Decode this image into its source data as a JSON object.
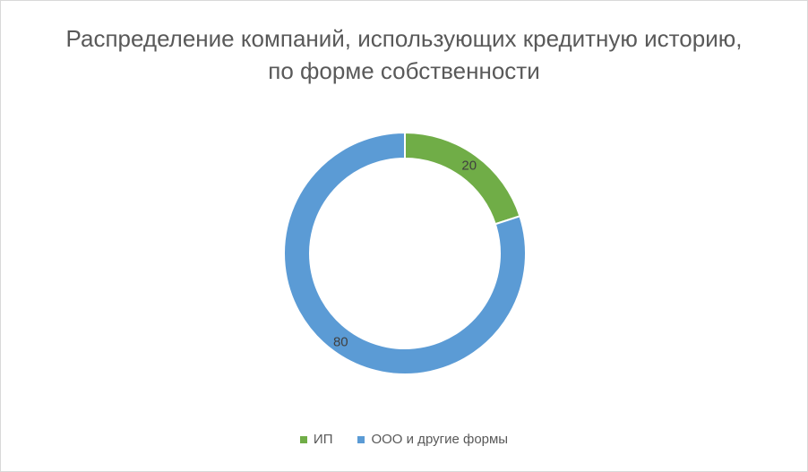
{
  "chart_data": {
    "type": "doughnut",
    "title": "Распределение компаний, использующих кредитную историю, по форме собственности",
    "categories": [
      "ИП",
      "ООО и другие формы"
    ],
    "values": [
      20,
      80
    ],
    "data_labels": [
      "20",
      "80"
    ],
    "colors": [
      "#70ad47",
      "#5b9bd5"
    ],
    "legend_position": "bottom",
    "start_angle_deg": 0,
    "direction": "clockwise"
  }
}
